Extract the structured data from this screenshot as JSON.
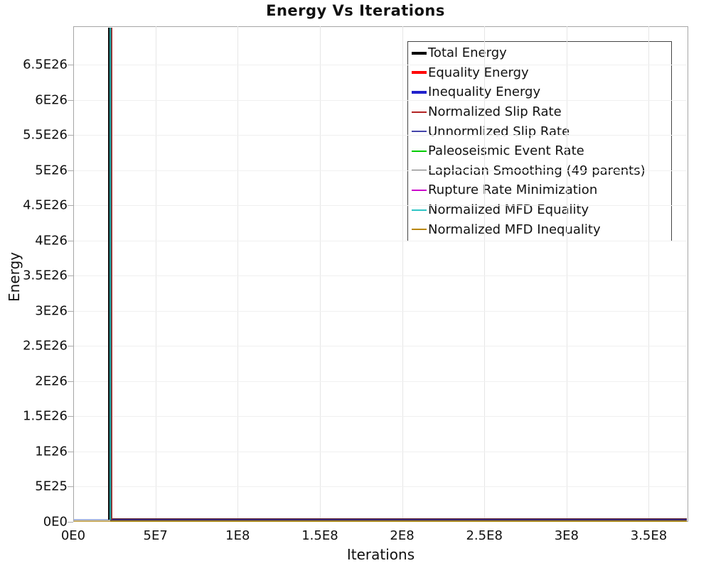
{
  "chart_data": {
    "type": "line",
    "title": "Energy Vs Iterations",
    "xlabel": "Iterations",
    "ylabel": "Energy",
    "grid": true,
    "legend_position": "top-right",
    "x_axis": {
      "min": 0,
      "max": 374000000,
      "ticks": [
        {
          "v": 0,
          "label": "0E0"
        },
        {
          "v": 50000000,
          "label": "5E7"
        },
        {
          "v": 100000000,
          "label": "1E8"
        },
        {
          "v": 150000000,
          "label": "1.5E8"
        },
        {
          "v": 200000000,
          "label": "2E8"
        },
        {
          "v": 250000000,
          "label": "2.5E8"
        },
        {
          "v": 300000000,
          "label": "3E8"
        },
        {
          "v": 350000000,
          "label": "3.5E8"
        }
      ]
    },
    "y_axis": {
      "min": 0,
      "max": 7.05e+26,
      "ticks": [
        {
          "v": 0,
          "label": "0E0"
        },
        {
          "v": 5e+25,
          "label": "5E25"
        },
        {
          "v": 1e+26,
          "label": "1E26"
        },
        {
          "v": 1.5e+26,
          "label": "1.5E26"
        },
        {
          "v": 2e+26,
          "label": "2E26"
        },
        {
          "v": 2.5e+26,
          "label": "2.5E26"
        },
        {
          "v": 3e+26,
          "label": "3E26"
        },
        {
          "v": 3.5e+26,
          "label": "3.5E26"
        },
        {
          "v": 4e+26,
          "label": "4E26"
        },
        {
          "v": 4.5e+26,
          "label": "4.5E26"
        },
        {
          "v": 5e+26,
          "label": "5E26"
        },
        {
          "v": 5.5e+26,
          "label": "5.5E26"
        },
        {
          "v": 6e+26,
          "label": "6E26"
        },
        {
          "v": 6.5e+26,
          "label": "6.5E26"
        }
      ]
    },
    "series": [
      {
        "name": "Total Energy",
        "color": "#000000",
        "line_width": 4
      },
      {
        "name": "Equality Energy",
        "color": "#ff0000",
        "line_width": 4
      },
      {
        "name": "Inequality Energy",
        "color": "#2222cc",
        "line_width": 4
      },
      {
        "name": "Normalized Slip Rate",
        "color": "#b22222",
        "line_width": 2
      },
      {
        "name": "Unnormlized Slip Rate",
        "color": "#4444aa",
        "line_width": 2
      },
      {
        "name": "Paleoseismic Event Rate",
        "color": "#00cc00",
        "line_width": 2
      },
      {
        "name": "Laplacian Smoothing (49 parents)",
        "color": "#777777",
        "line_width": 2
      },
      {
        "name": "Rupture Rate Minimization",
        "color": "#cc00cc",
        "line_width": 2
      },
      {
        "name": "Normalized MFD Equality",
        "color": "#2fc5c5",
        "line_width": 2
      },
      {
        "name": "Normalized MFD Inequality",
        "color": "#b8860b",
        "line_width": 2
      }
    ],
    "shape": {
      "note": "All series plot on top of one another: energy is above the visible axis range (>7e26) for iterations < ~2.2E7, plunges nearly vertically to ~0 at ~2.24E7 iterations, then remains ~0 out to ~3.74E8 iterations.",
      "drop_x": 22400000,
      "approx_points": [
        [
          0,
          7.2e+26
        ],
        [
          22000000,
          7.2e+26
        ],
        [
          22600000,
          0
        ],
        [
          374000000,
          0
        ]
      ],
      "drop_stripe_colors": [
        {
          "color": "#111111",
          "width": 1.5
        },
        {
          "color": "#20a0a0",
          "width": 2
        },
        {
          "color": "#555555",
          "width": 1
        },
        {
          "color": "#b22222",
          "width": 1
        }
      ],
      "pre_drop_band_colors": [
        "#a8b6df",
        "#c9ad62"
      ],
      "post_drop_band_colors": [
        "#5e2330",
        "#3a2a78",
        "#a8871e"
      ]
    }
  }
}
